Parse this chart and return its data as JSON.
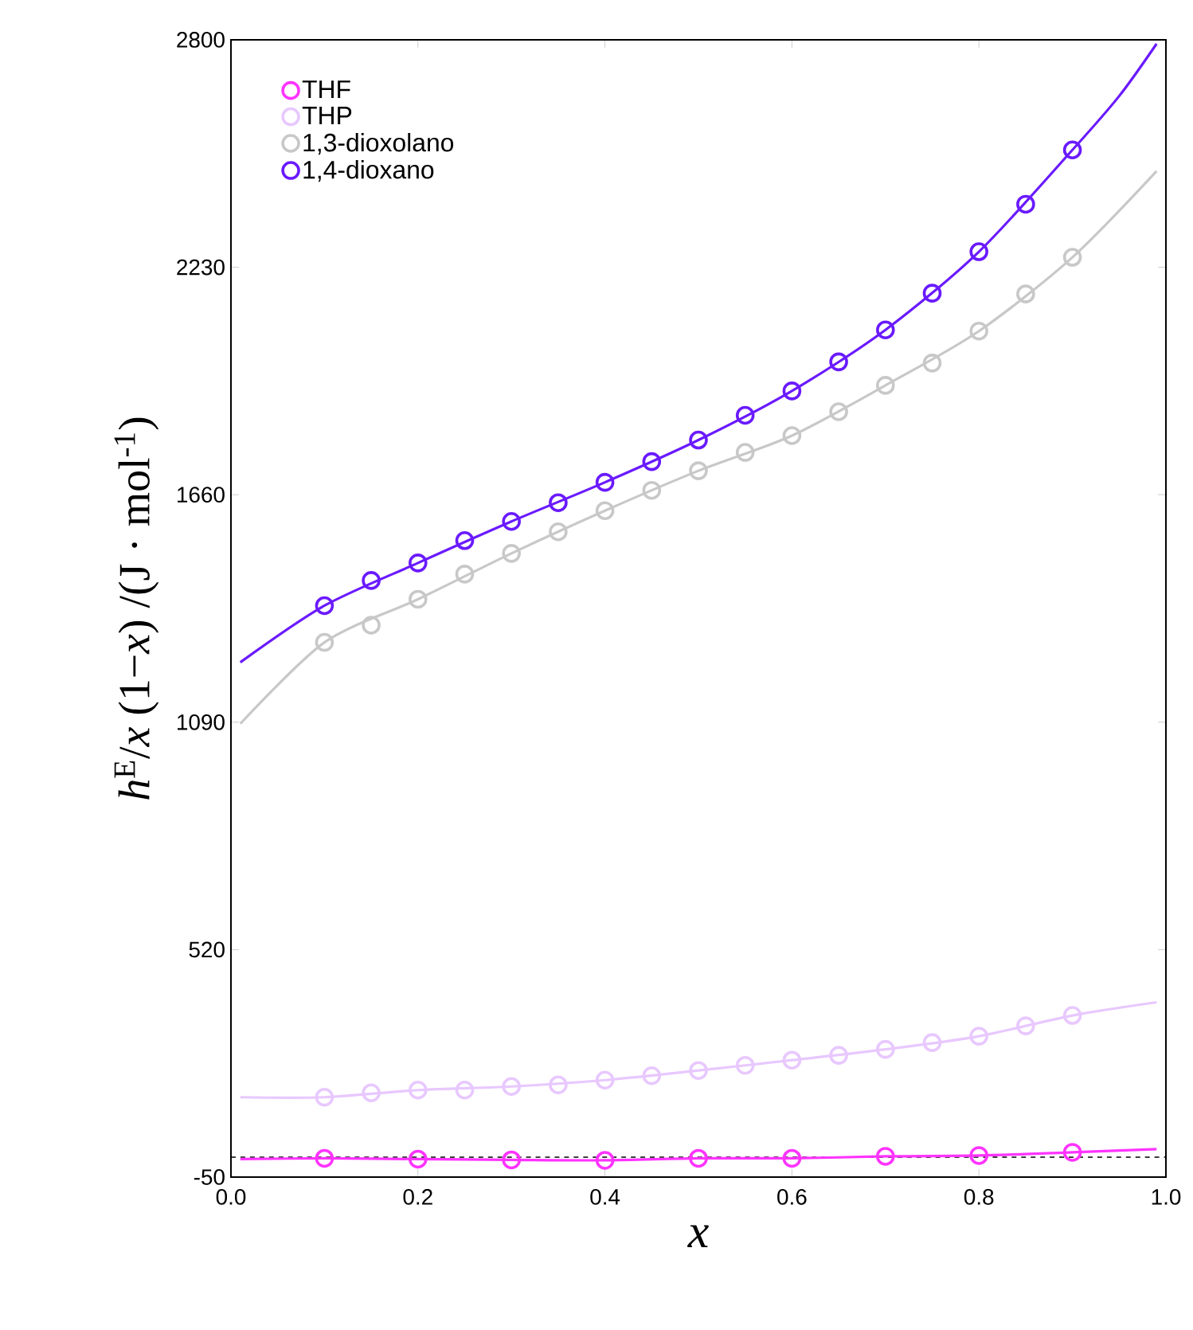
{
  "chart_data": {
    "type": "scatter",
    "xlabel": "x",
    "ylabel": "*h*$^{E}$/*x* (1−*x*) /(J · mol$^{-1}$)",
    "xlim": [
      0,
      1
    ],
    "ylim": [
      -50,
      2800
    ],
    "xticks": [
      {
        "value": 0,
        "label": "0.0"
      },
      0.2,
      0.4,
      0.6,
      0.8,
      {
        "value": 1,
        "label": "1.0"
      }
    ],
    "yticks": [
      -50,
      520,
      1090,
      1660,
      2230,
      2800
    ],
    "grid": false,
    "legend": "top left",
    "marker": "circle",
    "ref_lines": [
      {
        "axis": "y",
        "value": 0,
        "line_style": "dashed",
        "color": "#000000"
      }
    ],
    "series": [
      {
        "name": "THF",
        "color": "#ff33ff",
        "x": [
          0.1,
          0.2,
          0.3,
          0.4,
          0.5,
          0.6,
          0.7,
          0.8,
          0.9
        ],
        "values": [
          -3,
          -5,
          -7,
          -8,
          -3,
          -3,
          2,
          4,
          12
        ]
      },
      {
        "name": "THP",
        "color": "#e8c8ff",
        "x": [
          0.1,
          0.15,
          0.2,
          0.25,
          0.3,
          0.35,
          0.4,
          0.45,
          0.5,
          0.55,
          0.6,
          0.65,
          0.7,
          0.75,
          0.8,
          0.85,
          0.9
        ],
        "values": [
          150,
          161,
          168,
          168,
          177,
          181,
          193,
          204,
          217,
          230,
          243,
          255,
          270,
          287,
          303,
          329,
          355
        ]
      },
      {
        "name": "1,3-dioxolano",
        "color": "#c8c8c8",
        "x": [
          0.1,
          0.15,
          0.2,
          0.25,
          0.3,
          0.35,
          0.4,
          0.45,
          0.5,
          0.55,
          0.6,
          0.65,
          0.7,
          0.75,
          0.8,
          0.85,
          0.9
        ],
        "values": [
          1290,
          1333,
          1398,
          1461,
          1513,
          1567,
          1620,
          1671,
          1720,
          1766,
          1808,
          1868,
          1934,
          1990,
          2070,
          2163,
          2255
        ]
      },
      {
        "name": "1,4-dioxano",
        "color": "#6a1aff",
        "x": [
          0.1,
          0.15,
          0.2,
          0.25,
          0.3,
          0.35,
          0.4,
          0.45,
          0.5,
          0.55,
          0.6,
          0.65,
          0.7,
          0.75,
          0.8,
          0.85,
          0.9
        ],
        "values": [
          1382,
          1445,
          1489,
          1545,
          1593,
          1640,
          1691,
          1743,
          1797,
          1859,
          1920,
          1993,
          2073,
          2165,
          2269,
          2388,
          2524
        ]
      },
      {
        "type": "line",
        "marker": "none",
        "color": "#ff33ff",
        "x": [
          0.01,
          0.1,
          0.2,
          0.3,
          0.4,
          0.5,
          0.6,
          0.7,
          0.8,
          0.9,
          0.99
        ],
        "values": [
          -5,
          -3,
          -5,
          -7,
          -8,
          -3,
          -3,
          2,
          4,
          12,
          20
        ]
      },
      {
        "type": "line",
        "marker": "none",
        "color": "#e8c8ff",
        "x": [
          0.01,
          0.1,
          0.2,
          0.3,
          0.4,
          0.5,
          0.6,
          0.7,
          0.8,
          0.9,
          0.99
        ],
        "values": [
          150,
          150,
          168,
          177,
          193,
          217,
          243,
          270,
          303,
          355,
          388
        ]
      },
      {
        "type": "line",
        "marker": "none",
        "color": "#c8c8c8",
        "x": [
          0.01,
          0.1,
          0.2,
          0.3,
          0.4,
          0.5,
          0.6,
          0.7,
          0.8,
          0.9,
          0.99
        ],
        "values": [
          1086,
          1290,
          1398,
          1513,
          1620,
          1720,
          1808,
          1934,
          2070,
          2255,
          2471
        ]
      },
      {
        "type": "line",
        "marker": "none",
        "color": "#6a1aff",
        "x": [
          0.01,
          0.1,
          0.2,
          0.3,
          0.4,
          0.5,
          0.6,
          0.7,
          0.8,
          0.9,
          0.95,
          0.99
        ],
        "values": [
          1240,
          1382,
          1489,
          1593,
          1691,
          1797,
          1920,
          2073,
          2269,
          2524,
          2659,
          2790
        ]
      }
    ]
  }
}
